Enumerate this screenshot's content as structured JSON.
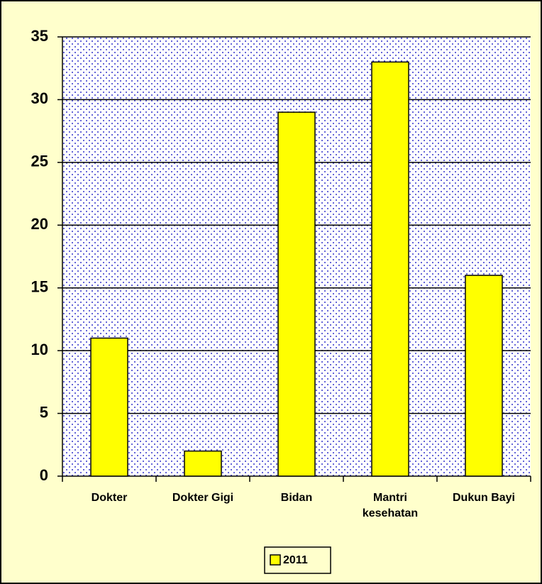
{
  "chart_data": {
    "type": "bar",
    "categories": [
      "Dokter",
      "Dokter Gigi",
      "Bidan",
      "Mantri kesehatan",
      "Dukun Bayi"
    ],
    "series": [
      {
        "name": "2011",
        "color": "#ffff00",
        "values": [
          11,
          2,
          29,
          33,
          16
        ]
      }
    ],
    "ylim": [
      0,
      35
    ],
    "yticks": [
      0,
      5,
      10,
      15,
      20,
      25,
      30,
      35
    ],
    "grid": true,
    "legend": "bottom"
  }
}
